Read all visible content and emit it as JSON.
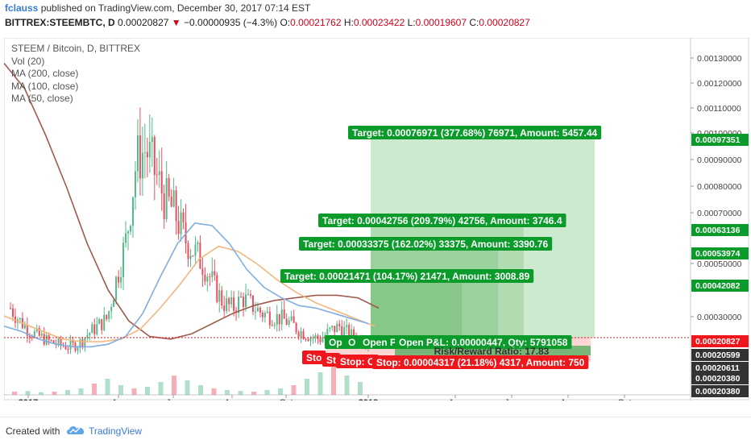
{
  "header": {
    "author": "fclauss",
    "published": "published on TradingView.com, December 30, 2017 07:14 EST",
    "symbol": "BITTREX:STEEMBTC, D",
    "last": "0.00020827",
    "change": "−0.00000935 (−4.3%)",
    "o_label": "O:",
    "o": "0.00021762",
    "h_label": "H:",
    "h": "0.00023422",
    "l_label": "L:",
    "l": "0.00019607",
    "c_label": "C:",
    "c": "0.00020827"
  },
  "legend": [
    "STEEM / Bitcoin, D, BITTREX",
    "Vol (20)",
    "MA (200, close)",
    "MA (100, close)",
    "MA (50, close)"
  ],
  "footer": {
    "created": "Created with",
    "brand": "TradingView"
  },
  "colors": {
    "candle_up": "#53b987",
    "candle_down": "#eb4d5c",
    "ma200": "#a0594f",
    "ma100": "#f2b77d",
    "ma50": "#7eaee3",
    "target": "#0b9b2a",
    "stop": "#f0171c",
    "green_zone": "#4caf50",
    "red_zone": "#f44336"
  },
  "chart_data": {
    "type": "candlestick",
    "x_ticks": [
      "2017",
      "Apr",
      "Jun",
      "Aug",
      "Oct",
      "2018",
      "Apr",
      "Jun",
      "Aug",
      "Oct"
    ],
    "y_ticks": [
      "0.00130000",
      "0.00120000",
      "0.00110000",
      "0.00100000",
      "0.00090000",
      "0.00080000",
      "0.00070000",
      "0.00050000",
      "0.00030000"
    ],
    "ylim": [
      0.0002,
      0.00135
    ],
    "price_tags": [
      {
        "value": 0.00097351,
        "label": "0.00097351",
        "color": "#0b9b2a"
      },
      {
        "value": 0.00063136,
        "label": "0.00063136",
        "color": "#0b9b2a"
      },
      {
        "value": 0.00053974,
        "label": "0.00053974",
        "color": "#0b9b2a"
      },
      {
        "value": 0.00042082,
        "label": "0.00042082",
        "color": "#0b9b2a"
      },
      {
        "value": 0.00020827,
        "label": "0.00020827",
        "color": "#f0171c"
      },
      {
        "label": "0.00020599",
        "color": "#333333"
      },
      {
        "label": "0.00020611",
        "color": "#333333"
      },
      {
        "label": "0.00020380",
        "color": "#333333"
      },
      {
        "label": "0.00020380",
        "color": "#333333"
      }
    ],
    "price_path": [
      0.00033,
      0.00028,
      0.00024,
      0.00022,
      0.0002,
      0.00019,
      0.00018,
      0.00019,
      0.00023,
      0.00026,
      0.00029,
      0.00045,
      0.0006,
      0.0009,
      0.00095,
      0.00085,
      0.00075,
      0.0007,
      0.0006,
      0.00055,
      0.0005,
      0.00042,
      0.00035,
      0.00033,
      0.00037,
      0.00034,
      0.00031,
      0.0003,
      0.00029,
      0.00027,
      0.00024,
      0.00022,
      0.00021,
      0.00024,
      0.00026,
      0.00023,
      0.00021,
      0.000208
    ],
    "ma50": [
      0.00026,
      0.00024,
      0.00021,
      0.00019,
      0.00018,
      0.00018,
      0.00019,
      0.00022,
      0.00031,
      0.00045,
      0.00058,
      0.00066,
      0.00065,
      0.00058,
      0.00048,
      0.00041,
      0.00037,
      0.00034,
      0.00033,
      0.00031,
      0.00029,
      0.00027
    ],
    "ma100": [
      0.0003,
      0.00027,
      0.00024,
      0.00021,
      0.0002,
      0.0002,
      0.00021,
      0.00025,
      0.00033,
      0.00042,
      0.00052,
      0.00057,
      0.00055,
      0.0005,
      0.00044,
      0.00039,
      0.00035,
      0.00032,
      0.00029,
      0.00026
    ],
    "ma200": [
      0.00128,
      0.00118,
      0.001,
      0.0008,
      0.00058,
      0.0004,
      0.00028,
      0.00022,
      0.00021,
      0.00023,
      0.00027,
      0.00031,
      0.00034,
      0.00036,
      0.00037,
      0.00038,
      0.00038,
      0.00037,
      0.00033
    ],
    "volume": [
      0.1,
      0.12,
      0.08,
      0.1,
      0.15,
      0.2,
      0.35,
      0.5,
      0.3,
      0.2,
      0.25,
      0.4,
      0.6,
      0.45,
      0.3,
      0.2,
      0.15,
      0.12,
      0.1,
      0.15,
      0.2,
      0.3,
      0.5,
      0.7,
      0.9,
      0.6,
      0.4
    ],
    "positions": {
      "targets": [
        "Target: 0.00076971 (377.68%) 76971, Amount: 5457.44",
        "Target: 0.00042756 (209.79%) 42756, Amount: 3746.4",
        "Target: 0.00033375 (162.02%) 33375, Amount: 3390.76",
        "Target: 0.00021471 (104.17%) 21471, Amount: 3008.89"
      ],
      "entry": "Open P&L: 0.00000447, Qty: 5791058",
      "entry_short": [
        "Op",
        "O",
        "Open P"
      ],
      "ratio": "Risk/Reward Ratio: 17.83",
      "stop": "Stop: 0.00004317 (21.18%) 4317, Amount: 750",
      "stop_short": [
        "Sto",
        "St",
        "Stop: C"
      ]
    }
  }
}
